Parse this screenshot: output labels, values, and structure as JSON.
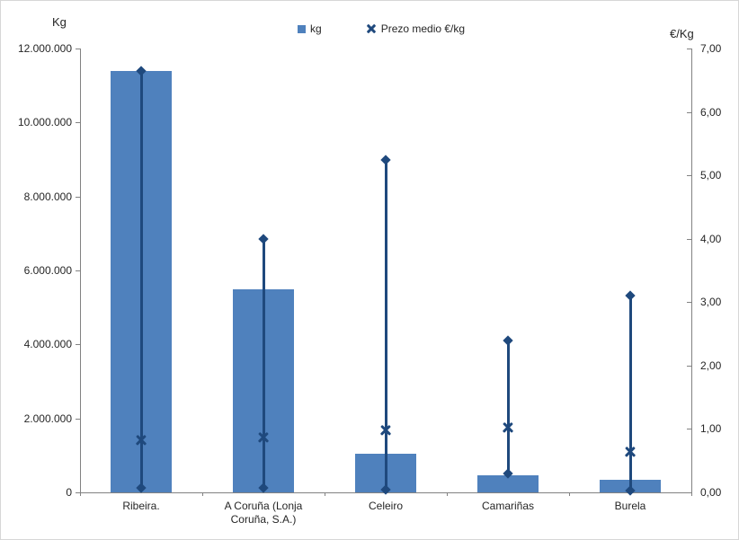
{
  "colors": {
    "bar_fill": "#4f81bd",
    "line_marker": "#1f497d",
    "axis_line": "#828282",
    "text": "#262626"
  },
  "chart_data": {
    "type": "bar",
    "subtype": "combo-bar-with-highlow-lines",
    "title_left_axis": "Kg",
    "title_right_axis": "€/Kg",
    "legend_position": "top-center",
    "grid": false,
    "legend": [
      {
        "label": "kg",
        "marker": "square",
        "color": "#4f81bd"
      },
      {
        "label": "Prezo medio €/kg",
        "marker": "x",
        "color": "#1f497d"
      }
    ],
    "categories": [
      "Ribeira.",
      "A Coruña (Lonja Coruña, S.A.)",
      "Celeiro",
      "Camariñas",
      "Burela"
    ],
    "series": [
      {
        "name": "kg",
        "type": "bar",
        "axis": "left",
        "values": [
          11400000,
          5500000,
          1050000,
          460000,
          330000
        ]
      },
      {
        "name": "Prezo medio €/kg",
        "type": "highlow",
        "axis": "right",
        "high": [
          6.65,
          4.0,
          5.25,
          2.4,
          3.1
        ],
        "low": [
          0.07,
          0.07,
          0.04,
          0.3,
          0.03
        ],
        "mean": [
          0.82,
          0.87,
          0.98,
          1.02,
          0.64
        ]
      }
    ],
    "left_axis": {
      "label": "Kg",
      "min": 0,
      "max": 12000000,
      "step": 2000000,
      "ticks": [
        "0",
        "2.000.000",
        "4.000.000",
        "6.000.000",
        "8.000.000",
        "10.000.000",
        "12.000.000"
      ]
    },
    "right_axis": {
      "label": "€/Kg",
      "min": 0,
      "max": 7,
      "step": 1,
      "ticks": [
        "0,00",
        "1,00",
        "2,00",
        "3,00",
        "4,00",
        "5,00",
        "6,00",
        "7,00"
      ]
    }
  }
}
